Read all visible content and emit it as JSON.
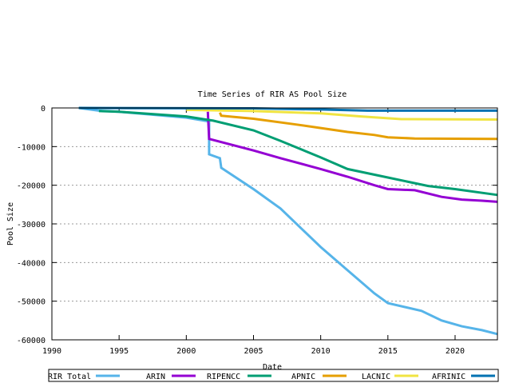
{
  "chart_data": {
    "type": "line",
    "title": "Time Series of RIR AS Pool Size",
    "xlabel": "Date",
    "ylabel": "Pool Size",
    "xlim": [
      1990,
      2023.15
    ],
    "ylim": [
      -60000,
      0
    ],
    "x_ticks": [
      "1990",
      "1995",
      "2000",
      "2005",
      "2010",
      "2015",
      "2020"
    ],
    "y_ticks": [
      "0",
      "-10000",
      "-20000",
      "-30000",
      "-40000",
      "-50000",
      "-60000"
    ],
    "grid": "horizontal dashed",
    "legend_position": "bottom",
    "series": [
      {
        "name": "RIR Total",
        "color": "#56b4e9",
        "points": [
          [
            1992,
            0
          ],
          [
            1993.5,
            -700
          ],
          [
            1995,
            -1000
          ],
          [
            2000,
            -2500
          ],
          [
            2001.7,
            -3500
          ],
          [
            2001.7,
            -12000
          ],
          [
            2002.5,
            -13000
          ],
          [
            2002.6,
            -15500
          ],
          [
            2005,
            -21000
          ],
          [
            2007,
            -26000
          ],
          [
            2010,
            -36000
          ],
          [
            2012,
            -42000
          ],
          [
            2014,
            -48000
          ],
          [
            2015,
            -50500
          ],
          [
            2017.5,
            -52500
          ],
          [
            2019,
            -55000
          ],
          [
            2020.5,
            -56500
          ],
          [
            2022,
            -57500
          ],
          [
            2023.15,
            -58500
          ]
        ]
      },
      {
        "name": "ARIN",
        "color": "#9400d3",
        "points": [
          [
            2001.6,
            -1000
          ],
          [
            2001.7,
            -8000
          ],
          [
            2005,
            -11000
          ],
          [
            2007,
            -13000
          ],
          [
            2010,
            -15800
          ],
          [
            2012,
            -17800
          ],
          [
            2014,
            -20000
          ],
          [
            2015,
            -21000
          ],
          [
            2017,
            -21300
          ],
          [
            2019,
            -23000
          ],
          [
            2020.5,
            -23700
          ],
          [
            2022,
            -24000
          ],
          [
            2023.15,
            -24300
          ]
        ]
      },
      {
        "name": "RIPENCC",
        "color": "#009e73",
        "points": [
          [
            1993.5,
            -800
          ],
          [
            1995,
            -1000
          ],
          [
            2000,
            -2200
          ],
          [
            2002,
            -3300
          ],
          [
            2005,
            -5800
          ],
          [
            2007,
            -8500
          ],
          [
            2010,
            -12800
          ],
          [
            2012,
            -15800
          ],
          [
            2015,
            -18000
          ],
          [
            2018,
            -20200
          ],
          [
            2020,
            -21000
          ],
          [
            2023.15,
            -22500
          ]
        ]
      },
      {
        "name": "APNIC",
        "color": "#e69f00",
        "points": [
          [
            2002.5,
            -1200
          ],
          [
            2002.6,
            -2000
          ],
          [
            2005,
            -2800
          ],
          [
            2008,
            -4200
          ],
          [
            2010,
            -5200
          ],
          [
            2012,
            -6200
          ],
          [
            2014,
            -7000
          ],
          [
            2015,
            -7600
          ],
          [
            2017,
            -7900
          ],
          [
            2023.15,
            -8000
          ]
        ]
      },
      {
        "name": "LACNIC",
        "color": "#f0e442",
        "points": [
          [
            2000,
            -500
          ],
          [
            2005,
            -800
          ],
          [
            2010,
            -1400
          ],
          [
            2013,
            -2200
          ],
          [
            2016,
            -2900
          ],
          [
            2023.15,
            -3000
          ]
        ]
      },
      {
        "name": "AFRINIC",
        "color": "#0072b2",
        "points": [
          [
            1992,
            0
          ],
          [
            2005,
            -100
          ],
          [
            2010,
            -400
          ],
          [
            2013.5,
            -700
          ],
          [
            2023.15,
            -700
          ]
        ]
      }
    ]
  }
}
